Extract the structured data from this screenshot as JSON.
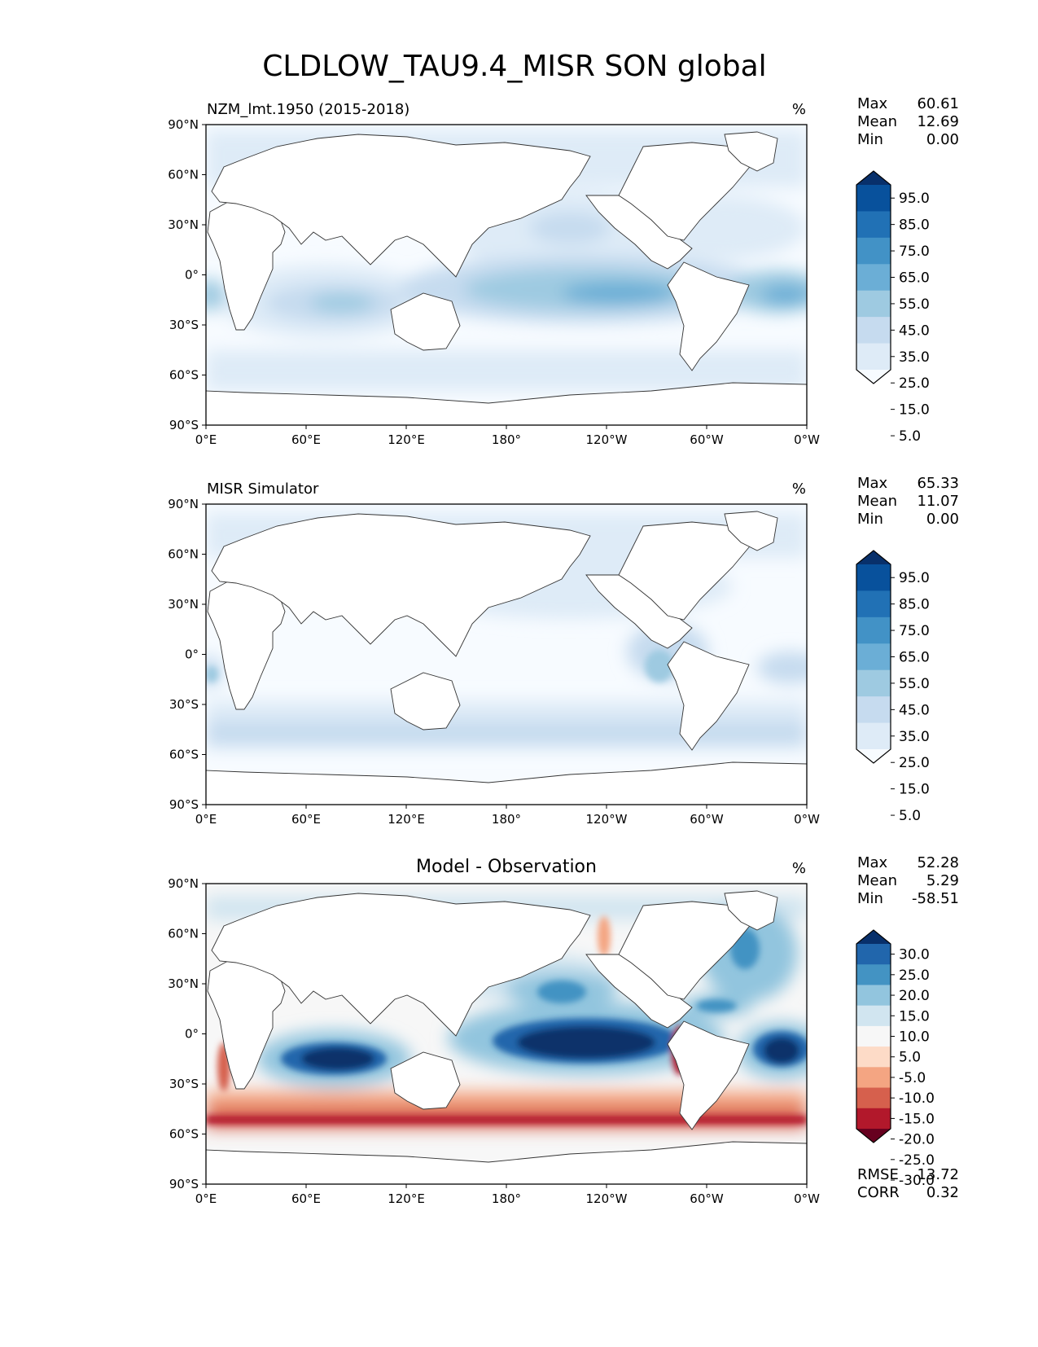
{
  "title": "CLDLOW_TAU9.4_MISR SON global",
  "lat_ticks": [
    "90°N",
    "60°N",
    "30°N",
    "0°",
    "30°S",
    "60°S",
    "90°S"
  ],
  "lon_ticks": [
    "0°E",
    "60°E",
    "120°E",
    "180°",
    "120°W",
    "60°W",
    "0°W"
  ],
  "chart_data": [
    {
      "type": "heatmap",
      "title": "NZM_lmt.1950 (2015-2018)",
      "units": "%",
      "stats": [
        {
          "label": "Max",
          "value": "60.61"
        },
        {
          "label": "Mean",
          "value": "12.69"
        },
        {
          "label": "Min",
          "value": "0.00"
        }
      ],
      "colorbar": {
        "levels": [
          "95.0",
          "85.0",
          "75.0",
          "65.0",
          "55.0",
          "45.0",
          "35.0",
          "25.0",
          "15.0",
          "5.0"
        ],
        "colors": [
          "#08306b",
          "#08519c",
          "#2171b5",
          "#4292c6",
          "#6baed6",
          "#9ecae1",
          "#c6dbef",
          "#deebf7",
          "#f7fbff"
        ]
      }
    },
    {
      "type": "heatmap",
      "title": "MISR Simulator",
      "units": "%",
      "stats": [
        {
          "label": "Max",
          "value": "65.33"
        },
        {
          "label": "Mean",
          "value": "11.07"
        },
        {
          "label": "Min",
          "value": "0.00"
        }
      ],
      "colorbar": {
        "levels": [
          "95.0",
          "85.0",
          "75.0",
          "65.0",
          "55.0",
          "45.0",
          "35.0",
          "25.0",
          "15.0",
          "5.0"
        ],
        "colors": [
          "#08306b",
          "#08519c",
          "#2171b5",
          "#4292c6",
          "#6baed6",
          "#9ecae1",
          "#c6dbef",
          "#deebf7",
          "#f7fbff"
        ]
      }
    },
    {
      "type": "heatmap",
      "title": "Model - Observation",
      "units": "%",
      "stats": [
        {
          "label": "Max",
          "value": "52.28"
        },
        {
          "label": "Mean",
          "value": "5.29"
        },
        {
          "label": "Min",
          "value": "-58.51"
        }
      ],
      "metrics": [
        {
          "label": "RMSE",
          "value": "13.72"
        },
        {
          "label": "CORR",
          "value": "0.32"
        }
      ],
      "colorbar": {
        "levels": [
          "30.0",
          "25.0",
          "20.0",
          "15.0",
          "10.0",
          "5.0",
          "-5.0",
          "-10.0",
          "-15.0",
          "-20.0",
          "-25.0",
          "-30.0"
        ],
        "colors": [
          "#08306b",
          "#2166ac",
          "#4393c3",
          "#92c5de",
          "#d1e5f0",
          "#f7f7f7",
          "#fddbc7",
          "#f4a582",
          "#d6604d",
          "#b2182b",
          "#67001f"
        ]
      }
    }
  ]
}
